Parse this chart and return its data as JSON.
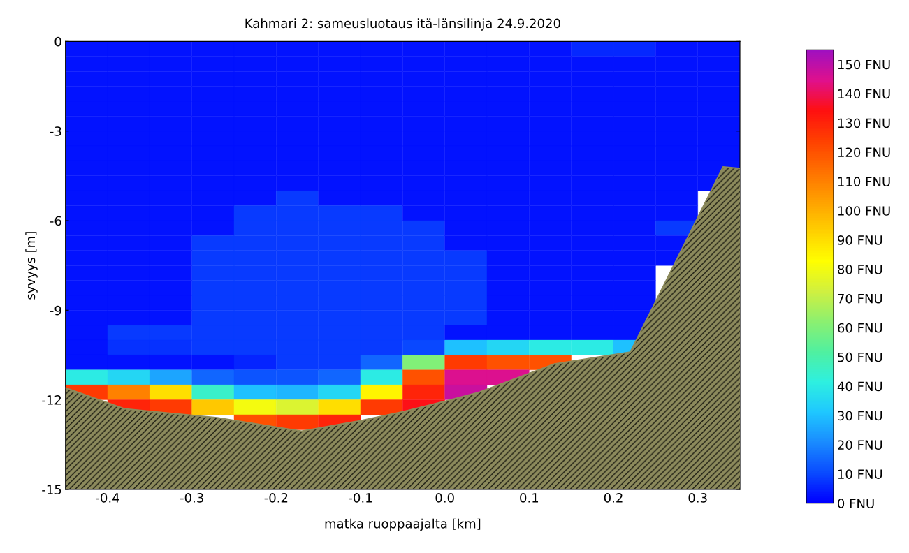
{
  "chart_data": {
    "type": "heatmap",
    "title": "Kahmari 2: sameusluotaus itä-länsilinja 24.9.2020",
    "xlabel": "matka ruoppaajalta [km]",
    "ylabel": "syvyys [m]",
    "x": [
      -0.425,
      -0.375,
      -0.325,
      -0.275,
      -0.225,
      -0.175,
      -0.125,
      -0.075,
      -0.025,
      0.025,
      0.075,
      0.125,
      0.175,
      0.225,
      0.275,
      0.325
    ],
    "y": [
      -0.25,
      -0.75,
      -1.25,
      -1.75,
      -2.25,
      -2.75,
      -3.25,
      -3.75,
      -4.25,
      -4.75,
      -5.25,
      -5.75,
      -6.25,
      -6.75,
      -7.25,
      -7.75,
      -8.25,
      -8.75,
      -9.25,
      -9.75,
      -10.25,
      -10.75,
      -11.25,
      -11.75,
      -12.25,
      -12.75
    ],
    "cells": [
      [
        3,
        3,
        3,
        3,
        3,
        3,
        3,
        3,
        3,
        3,
        3,
        3,
        6,
        6,
        3,
        3
      ],
      [
        3,
        3,
        3,
        3,
        3,
        3,
        3,
        3,
        3,
        3,
        3,
        3,
        3,
        3,
        3,
        3
      ],
      [
        3,
        3,
        3,
        3,
        3,
        3,
        3,
        3,
        3,
        3,
        3,
        3,
        3,
        3,
        3,
        3
      ],
      [
        3,
        3,
        3,
        3,
        3,
        3,
        3,
        3,
        3,
        3,
        3,
        3,
        3,
        3,
        3,
        3
      ],
      [
        3,
        3,
        3,
        3,
        3,
        3,
        3,
        3,
        3,
        3,
        3,
        3,
        3,
        3,
        3,
        3
      ],
      [
        3,
        3,
        3,
        3,
        3,
        3,
        3,
        3,
        3,
        3,
        3,
        3,
        3,
        3,
        3,
        3
      ],
      [
        3,
        3,
        3,
        3,
        3,
        3,
        3,
        3,
        3,
        3,
        3,
        3,
        3,
        3,
        3,
        3
      ],
      [
        3,
        3,
        3,
        3,
        3,
        3,
        3,
        3,
        3,
        3,
        3,
        3,
        3,
        3,
        3,
        3
      ],
      [
        3,
        3,
        3,
        3,
        3,
        3,
        3,
        3,
        3,
        3,
        3,
        3,
        3,
        3,
        3,
        3
      ],
      [
        3,
        3,
        3,
        3,
        3,
        3,
        3,
        3,
        3,
        3,
        3,
        3,
        3,
        3,
        3,
        3
      ],
      [
        3,
        3,
        3,
        3,
        3,
        8,
        3,
        3,
        3,
        3,
        3,
        3,
        3,
        3,
        3,
        null
      ],
      [
        3,
        3,
        3,
        3,
        8,
        8,
        8,
        8,
        3,
        3,
        3,
        3,
        3,
        3,
        3,
        null
      ],
      [
        3,
        3,
        3,
        3,
        8,
        8,
        8,
        8,
        8,
        3,
        3,
        3,
        3,
        3,
        8,
        null
      ],
      [
        3,
        3,
        3,
        8,
        8,
        8,
        8,
        8,
        8,
        3,
        3,
        3,
        3,
        3,
        3,
        null
      ],
      [
        3,
        3,
        3,
        8,
        8,
        8,
        8,
        8,
        8,
        8,
        3,
        3,
        3,
        3,
        3,
        null
      ],
      [
        3,
        3,
        3,
        8,
        8,
        8,
        8,
        8,
        8,
        8,
        3,
        3,
        3,
        3,
        null,
        null
      ],
      [
        3,
        3,
        3,
        8,
        8,
        8,
        8,
        8,
        8,
        8,
        3,
        3,
        3,
        3,
        null,
        null
      ],
      [
        3,
        3,
        3,
        8,
        8,
        8,
        8,
        8,
        8,
        8,
        3,
        3,
        3,
        3,
        null,
        null
      ],
      [
        3,
        3,
        3,
        8,
        8,
        8,
        8,
        8,
        8,
        8,
        3,
        3,
        3,
        3,
        null,
        null
      ],
      [
        3,
        8,
        8,
        8,
        8,
        8,
        8,
        8,
        8,
        3,
        3,
        3,
        3,
        3,
        null,
        null
      ],
      [
        3,
        7,
        7,
        8,
        8,
        8,
        8,
        8,
        10,
        30,
        35,
        40,
        40,
        30,
        null,
        null
      ],
      [
        3,
        3,
        3,
        3,
        5,
        8,
        8,
        15,
        60,
        125,
        120,
        120,
        null,
        null,
        null,
        null
      ],
      [
        40,
        35,
        25,
        15,
        12,
        12,
        15,
        40,
        120,
        145,
        145,
        null,
        null,
        null,
        null,
        null
      ],
      [
        125,
        110,
        90,
        45,
        30,
        28,
        35,
        85,
        130,
        148,
        null,
        null,
        null,
        null,
        null,
        null
      ],
      [
        null,
        130,
        125,
        95,
        80,
        75,
        90,
        125,
        135,
        null,
        null,
        null,
        null,
        null,
        null,
        null
      ],
      [
        null,
        null,
        null,
        null,
        120,
        125,
        130,
        null,
        null,
        null,
        null,
        null,
        null,
        null,
        null,
        null
      ]
    ],
    "colors": [
      "#0000ff",
      "#0a4cff",
      "#1a8cff",
      "#1fc8ff",
      "#2ef0e0",
      "#50f0a0",
      "#8cf070",
      "#d0f040",
      "#ffff00",
      "#ffd000",
      "#ffa000",
      "#ff7000",
      "#ff4000",
      "#ff1010",
      "#e0108c",
      "#a010c0"
    ],
    "clim": [
      0,
      155
    ],
    "cticks": [
      {
        "value": 0,
        "label": "0 FNU"
      },
      {
        "value": 10,
        "label": "10 FNU"
      },
      {
        "value": 20,
        "label": "20 FNU"
      },
      {
        "value": 30,
        "label": "30 FNU"
      },
      {
        "value": 40,
        "label": "40 FNU"
      },
      {
        "value": 50,
        "label": "50 FNU"
      },
      {
        "value": 60,
        "label": "60 FNU"
      },
      {
        "value": 70,
        "label": "70 FNU"
      },
      {
        "value": 80,
        "label": "80 FNU"
      },
      {
        "value": 90,
        "label": "90 FNU"
      },
      {
        "value": 100,
        "label": "100 FNU"
      },
      {
        "value": 110,
        "label": "110 FNU"
      },
      {
        "value": 120,
        "label": "120 FNU"
      },
      {
        "value": 130,
        "label": "130 FNU"
      },
      {
        "value": 140,
        "label": "140 FNU"
      },
      {
        "value": 150,
        "label": "150 FNU"
      }
    ],
    "series": [
      {
        "type": "line",
        "color": "#8c8a5c",
        "lower": [
          -15,
          -15,
          -15,
          -15,
          -15,
          -15,
          -15,
          -15,
          -15,
          -15,
          -15,
          -15
        ],
        "upper": [
          -11.6,
          -12.3,
          -12.6,
          -13.05,
          -12.7,
          -12.4,
          -12.05,
          -11.75,
          -10.8,
          -10.4,
          -4.2,
          -4.25
        ],
        "x": [
          -0.45,
          -0.38,
          -0.27,
          -0.17,
          -0.1,
          -0.05,
          0.0,
          0.04,
          0.13,
          0.22,
          0.33,
          0.35
        ],
        "values": [
          -11.6,
          -12.3,
          -12.6,
          -13.05,
          -12.7,
          -12.4,
          -12.05,
          -11.75,
          -10.8,
          -10.4,
          -4.2,
          -4.25
        ]
      }
    ],
    "xlim": [
      -0.45,
      0.35
    ],
    "ylim": [
      -15,
      0
    ],
    "xticks": [
      -0.4,
      -0.3,
      -0.2,
      -0.1,
      {
        "value": 0,
        "label": "0.0"
      },
      0.1,
      0.2,
      0.3
    ],
    "yticks": [
      -15,
      -12,
      -9,
      -6,
      -3,
      0
    ]
  }
}
